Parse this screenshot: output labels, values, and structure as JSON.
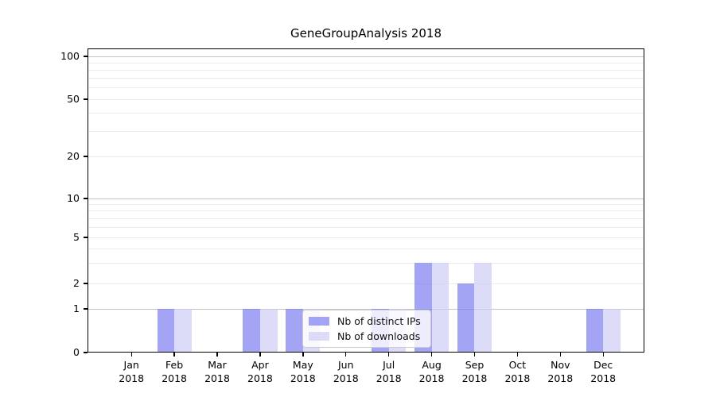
{
  "chart_data": {
    "type": "bar",
    "title": "GeneGroupAnalysis 2018",
    "categories": [
      "Jan",
      "Feb",
      "Mar",
      "Apr",
      "May",
      "Jun",
      "Jul",
      "Aug",
      "Sep",
      "Oct",
      "Nov",
      "Dec"
    ],
    "category_year": "2018",
    "series": [
      {
        "name": "Nb of distinct IPs",
        "color": "rgba(120,120,240,0.67)",
        "values": [
          0,
          1,
          0,
          1,
          1,
          0,
          1,
          3,
          2,
          0,
          0,
          1
        ]
      },
      {
        "name": "Nb of downloads",
        "color": "rgba(203,203,246,0.67)",
        "values": [
          0,
          1,
          0,
          1,
          1,
          0,
          1,
          3,
          3,
          0,
          0,
          1
        ]
      }
    ],
    "y_axis": {
      "ticks": [
        0,
        1,
        2,
        5,
        10,
        20,
        50,
        100
      ],
      "minor_gridlines": [
        3,
        4,
        6,
        7,
        8,
        9,
        30,
        40,
        60,
        70,
        80,
        90
      ],
      "scale": "symlog",
      "ylim": [
        0,
        115
      ]
    },
    "x_axis": {
      "tick_label_lines": [
        "Month",
        "Year"
      ]
    },
    "legend": {
      "position": "lower-center"
    },
    "grid": true,
    "colors": {
      "major_gridline": "#c4c4c4",
      "minor_gridline": "#ececec",
      "axis": "#000000",
      "legend_border": "#cccccc"
    }
  }
}
